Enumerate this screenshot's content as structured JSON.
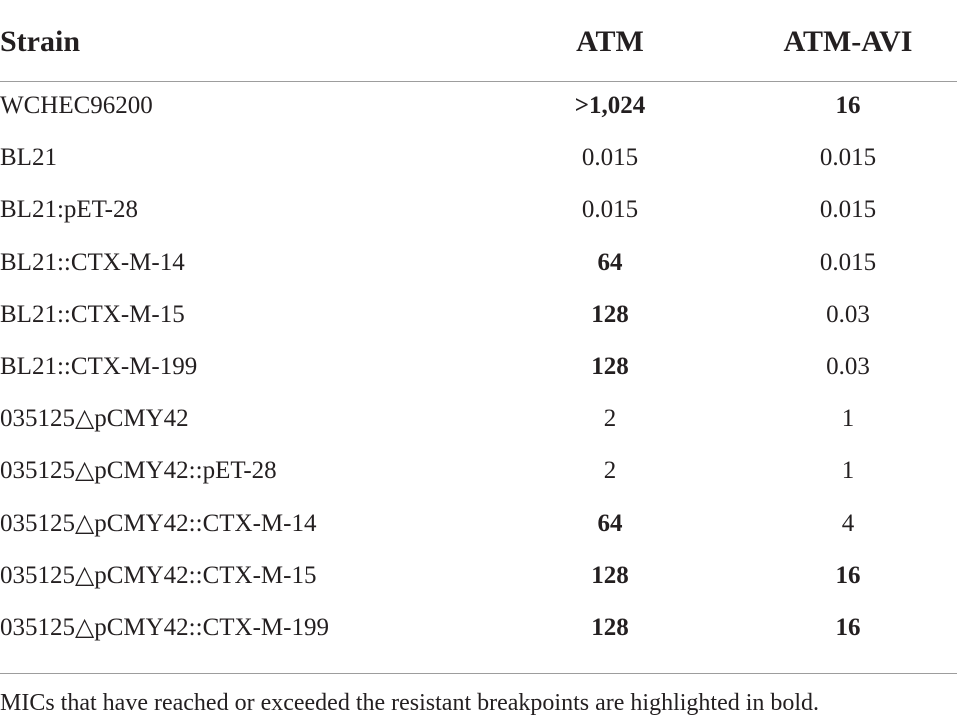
{
  "table": {
    "header": [
      "Strain",
      "ATM",
      "ATM-AVI"
    ],
    "rows": [
      [
        {
          "text": "WCHEC96200",
          "bold": false
        },
        {
          "text": ">1,024",
          "bold": true
        },
        {
          "text": "16",
          "bold": true
        }
      ],
      [
        {
          "text": "BL21",
          "bold": false
        },
        {
          "text": "0.015",
          "bold": false
        },
        {
          "text": "0.015",
          "bold": false
        }
      ],
      [
        {
          "text": "BL21:pET-28",
          "bold": false
        },
        {
          "text": "0.015",
          "bold": false
        },
        {
          "text": "0.015",
          "bold": false
        }
      ],
      [
        {
          "text": "BL21::CTX-M-14",
          "bold": false
        },
        {
          "text": "64",
          "bold": true
        },
        {
          "text": "0.015",
          "bold": false
        }
      ],
      [
        {
          "text": "BL21::CTX-M-15",
          "bold": false
        },
        {
          "text": "128",
          "bold": true
        },
        {
          "text": "0.03",
          "bold": false
        }
      ],
      [
        {
          "text": "BL21::CTX-M-199",
          "bold": false
        },
        {
          "text": "128",
          "bold": true
        },
        {
          "text": "0.03",
          "bold": false
        }
      ],
      [
        {
          "text": "035125△pCMY42",
          "bold": false
        },
        {
          "text": "2",
          "bold": false
        },
        {
          "text": "1",
          "bold": false
        }
      ],
      [
        {
          "text": "035125△pCMY42::pET-28",
          "bold": false
        },
        {
          "text": "2",
          "bold": false
        },
        {
          "text": "1",
          "bold": false
        }
      ],
      [
        {
          "text": "035125△pCMY42::CTX-M-14",
          "bold": false
        },
        {
          "text": "64",
          "bold": true
        },
        {
          "text": "4",
          "bold": false
        }
      ],
      [
        {
          "text": "035125△pCMY42::CTX-M-15",
          "bold": false
        },
        {
          "text": "128",
          "bold": true
        },
        {
          "text": "16",
          "bold": true
        }
      ],
      [
        {
          "text": "035125△pCMY42::CTX-M-199",
          "bold": false
        },
        {
          "text": "128",
          "bold": true
        },
        {
          "text": "16",
          "bold": true
        }
      ]
    ],
    "footnote": "MICs that have reached or exceeded the resistant breakpoints are highlighted in bold."
  }
}
